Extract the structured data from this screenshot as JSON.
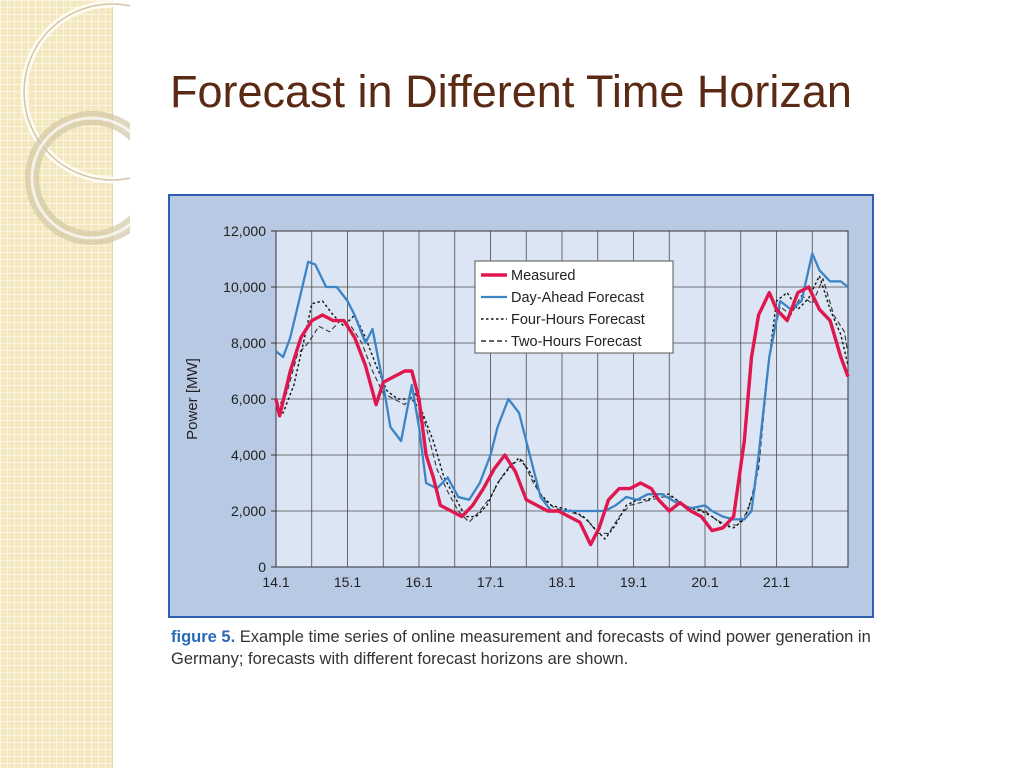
{
  "slide": {
    "title": "Forecast in Different Time Horizan"
  },
  "figure": {
    "caption_label": "figure 5.",
    "caption_text": " Example time series of online measurement and forecasts of wind power generation in Germany; forecasts with different forecast horizons are shown."
  },
  "colors": {
    "measured": "#e0174f",
    "day_ahead": "#3d84c6",
    "four_hours": "#111111",
    "two_hours": "#333333",
    "plot_bg": "#dce5f4",
    "frame_bg": "#b8c9e4",
    "frame_border": "#2f5fae",
    "title": "#5b2a14"
  },
  "chart_data": {
    "type": "line",
    "title": "",
    "xlabel": "",
    "ylabel": "Power [MW]",
    "xlim": [
      14.1,
      22.1
    ],
    "ylim": [
      0,
      12000
    ],
    "yticks": [
      0,
      2000,
      4000,
      6000,
      8000,
      10000,
      12000
    ],
    "ytick_labels": [
      "0",
      "2,000",
      "4,000",
      "6,000",
      "8,000",
      "10,000",
      "12,000"
    ],
    "xticks": [
      14.1,
      15.1,
      16.1,
      17.1,
      18.1,
      19.1,
      20.1,
      21.1
    ],
    "xtick_labels": [
      "14.1",
      "15.1",
      "16.1",
      "17.1",
      "18.1",
      "19.1",
      "20.1",
      "21.1"
    ],
    "grid": true,
    "legend_position": "top-right",
    "series": [
      {
        "name": "Measured",
        "style": "solid-thick",
        "x": [
          14.1,
          14.15,
          14.3,
          14.45,
          14.6,
          14.75,
          14.9,
          15.05,
          15.2,
          15.35,
          15.5,
          15.6,
          15.75,
          15.9,
          16.0,
          16.1,
          16.2,
          16.3,
          16.4,
          16.55,
          16.7,
          16.85,
          17.0,
          17.15,
          17.3,
          17.45,
          17.6,
          17.75,
          17.9,
          18.05,
          18.2,
          18.35,
          18.5,
          18.62,
          18.75,
          18.9,
          19.05,
          19.2,
          19.35,
          19.45,
          19.6,
          19.75,
          19.9,
          20.05,
          20.2,
          20.35,
          20.5,
          20.65,
          20.75,
          20.85,
          21.0,
          21.1,
          21.25,
          21.4,
          21.55,
          21.7,
          21.85,
          22.0,
          22.1
        ],
        "values": [
          6000,
          5400,
          7000,
          8200,
          8800,
          9000,
          8800,
          8800,
          8200,
          7200,
          5800,
          6600,
          6800,
          7000,
          7000,
          6000,
          4000,
          3200,
          2200,
          2000,
          1800,
          2200,
          2800,
          3500,
          4000,
          3400,
          2400,
          2200,
          2000,
          2000,
          1800,
          1600,
          800,
          1400,
          2400,
          2800,
          2800,
          3000,
          2800,
          2400,
          2000,
          2300,
          2000,
          1800,
          1300,
          1400,
          1800,
          4500,
          7500,
          9000,
          9800,
          9200,
          8800,
          9800,
          10000,
          9200,
          8800,
          7500,
          6800
        ]
      },
      {
        "name": "Day-Ahead Forecast",
        "style": "solid",
        "x": [
          14.1,
          14.2,
          14.3,
          14.45,
          14.55,
          14.65,
          14.8,
          14.95,
          15.1,
          15.2,
          15.35,
          15.45,
          15.6,
          15.7,
          15.85,
          16.0,
          16.1,
          16.2,
          16.35,
          16.5,
          16.65,
          16.8,
          16.95,
          17.1,
          17.2,
          17.35,
          17.5,
          17.65,
          17.8,
          17.95,
          18.1,
          18.3,
          18.5,
          18.7,
          18.85,
          19.0,
          19.15,
          19.3,
          19.5,
          19.7,
          19.9,
          20.1,
          20.2,
          20.35,
          20.5,
          20.65,
          20.75,
          20.85,
          21.0,
          21.15,
          21.3,
          21.45,
          21.6,
          21.7,
          21.85,
          22.0,
          22.1
        ],
        "values": [
          7700,
          7500,
          8200,
          9800,
          10900,
          10800,
          10000,
          10000,
          9500,
          9000,
          8000,
          8500,
          6500,
          5000,
          4500,
          6500,
          5000,
          3000,
          2800,
          3200,
          2500,
          2400,
          3000,
          4000,
          5000,
          6000,
          5500,
          4000,
          2500,
          2000,
          2000,
          2000,
          2000,
          2000,
          2200,
          2500,
          2400,
          2600,
          2600,
          2300,
          2100,
          2200,
          2000,
          1800,
          1700,
          1700,
          2000,
          4000,
          7500,
          9500,
          9200,
          9500,
          11200,
          10600,
          10200,
          10200,
          10000
        ]
      },
      {
        "name": "Four-Hours Forecast",
        "style": "dotted",
        "x": [
          14.1,
          14.2,
          14.35,
          14.5,
          14.6,
          14.75,
          14.9,
          15.05,
          15.2,
          15.35,
          15.5,
          15.65,
          15.8,
          16.0,
          16.15,
          16.3,
          16.45,
          16.6,
          16.75,
          16.9,
          17.05,
          17.2,
          17.35,
          17.5,
          17.65,
          17.8,
          17.95,
          18.1,
          18.25,
          18.4,
          18.55,
          18.7,
          18.85,
          19.0,
          19.15,
          19.3,
          19.45,
          19.6,
          19.75,
          19.9,
          20.05,
          20.2,
          20.35,
          20.5,
          20.65,
          20.8,
          20.95,
          21.1,
          21.25,
          21.4,
          21.55,
          21.7,
          21.85,
          22.0,
          22.1
        ],
        "values": [
          5800,
          5500,
          6500,
          8200,
          9400,
          9500,
          9000,
          8600,
          9000,
          8200,
          7200,
          6300,
          6000,
          6000,
          5500,
          4500,
          3200,
          2500,
          1800,
          1800,
          2200,
          3000,
          3500,
          3900,
          3400,
          2600,
          2200,
          2100,
          2000,
          1800,
          1400,
          1000,
          1500,
          2200,
          2400,
          2400,
          2600,
          2600,
          2300,
          2100,
          2000,
          1800,
          1500,
          1400,
          1700,
          2800,
          6500,
          9500,
          9800,
          9200,
          9600,
          10400,
          9200,
          8300,
          7200
        ]
      },
      {
        "name": "Two-Hours Forecast",
        "style": "dashed",
        "x": [
          14.1,
          14.25,
          14.4,
          14.55,
          14.7,
          14.85,
          15.0,
          15.15,
          15.3,
          15.45,
          15.6,
          15.75,
          15.9,
          16.05,
          16.2,
          16.35,
          16.5,
          16.65,
          16.8,
          16.95,
          17.1,
          17.25,
          17.4,
          17.55,
          17.7,
          17.85,
          18.0,
          18.15,
          18.3,
          18.45,
          18.6,
          18.75,
          18.9,
          19.05,
          19.2,
          19.35,
          19.5,
          19.65,
          19.8,
          19.95,
          20.1,
          20.25,
          20.4,
          20.55,
          20.7,
          20.85,
          21.0,
          21.15,
          21.3,
          21.45,
          21.6,
          21.75,
          21.9,
          22.05,
          22.1
        ],
        "values": [
          5600,
          6200,
          7600,
          8000,
          8600,
          8400,
          8800,
          8600,
          8000,
          7000,
          6200,
          6000,
          5800,
          6200,
          5000,
          3500,
          2700,
          2000,
          1600,
          2000,
          2500,
          3200,
          3700,
          3800,
          3000,
          2400,
          2100,
          2000,
          1900,
          1700,
          1200,
          1200,
          1800,
          2200,
          2300,
          2400,
          2500,
          2500,
          2200,
          2100,
          2000,
          1700,
          1500,
          1500,
          2000,
          3500,
          7500,
          9300,
          9000,
          9700,
          9400,
          10300,
          9000,
          8400,
          7600
        ]
      }
    ]
  }
}
